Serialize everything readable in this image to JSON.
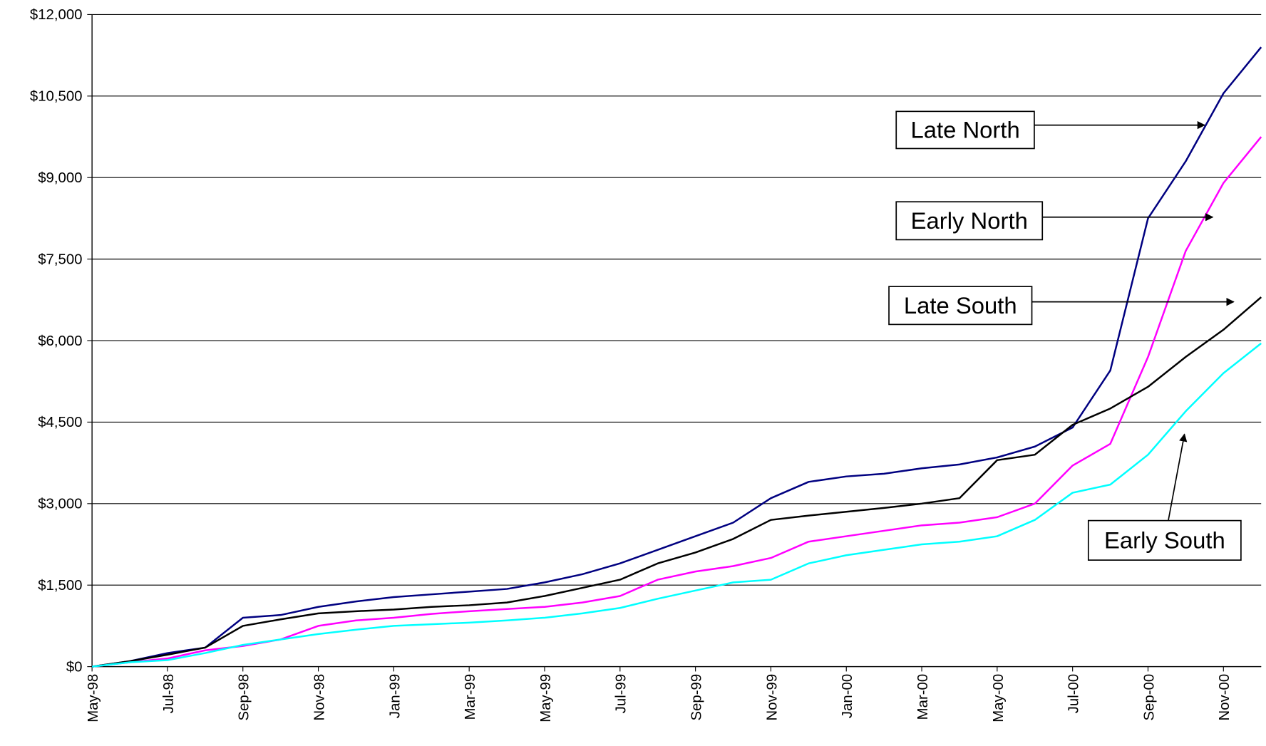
{
  "chart_data": {
    "type": "line",
    "x": [
      "May-98",
      "Jun-98",
      "Jul-98",
      "Aug-98",
      "Sep-98",
      "Oct-98",
      "Nov-98",
      "Dec-98",
      "Jan-99",
      "Feb-99",
      "Mar-99",
      "Apr-99",
      "May-99",
      "Jun-99",
      "Jul-99",
      "Aug-99",
      "Sep-99",
      "Oct-99",
      "Nov-99",
      "Dec-99",
      "Jan-00",
      "Feb-00",
      "Mar-00",
      "Apr-00",
      "May-00",
      "Jun-00",
      "Jul-00",
      "Aug-00",
      "Sep-00",
      "Oct-00",
      "Nov-00",
      "Dec-00"
    ],
    "xticks": [
      "May-98",
      "Jul-98",
      "Sep-98",
      "Nov-98",
      "Jan-99",
      "Mar-99",
      "May-99",
      "Jul-99",
      "Sep-99",
      "Nov-99",
      "Jan-00",
      "Mar-00",
      "May-00",
      "Jul-00",
      "Sep-00",
      "Nov-00"
    ],
    "series": [
      {
        "name": "Late North",
        "color": "#000080",
        "values": [
          0,
          100,
          250,
          350,
          900,
          950,
          1100,
          1200,
          1280,
          1330,
          1380,
          1430,
          1550,
          1700,
          1900,
          2150,
          2400,
          2650,
          3100,
          3400,
          3500,
          3550,
          3650,
          3720,
          3850,
          4050,
          4400,
          5450,
          8250,
          9300,
          10550,
          11400
        ]
      },
      {
        "name": "Early North",
        "color": "#ff00ff",
        "values": [
          0,
          80,
          150,
          300,
          380,
          500,
          750,
          850,
          900,
          970,
          1020,
          1060,
          1100,
          1180,
          1300,
          1600,
          1750,
          1850,
          2000,
          2300,
          2400,
          2500,
          2600,
          2650,
          2750,
          3000,
          3700,
          4100,
          5700,
          7650,
          8900,
          9750
        ]
      },
      {
        "name": "Late South",
        "color": "#000000",
        "values": [
          0,
          100,
          220,
          350,
          750,
          870,
          980,
          1020,
          1050,
          1100,
          1130,
          1180,
          1300,
          1450,
          1600,
          1900,
          2100,
          2350,
          2700,
          2780,
          2850,
          2920,
          3000,
          3100,
          3800,
          3900,
          4450,
          4750,
          5150,
          5700,
          6200,
          6800
        ]
      },
      {
        "name": "Early South",
        "color": "#00ffff",
        "values": [
          0,
          80,
          120,
          250,
          400,
          500,
          600,
          680,
          750,
          780,
          810,
          850,
          900,
          980,
          1080,
          1250,
          1400,
          1550,
          1600,
          1900,
          2050,
          2150,
          2250,
          2300,
          2400,
          2700,
          3200,
          3350,
          3900,
          4700,
          5400,
          5950
        ]
      }
    ],
    "ylim": [
      0,
      12000
    ],
    "yticks": [
      {
        "value": 0,
        "label": "$0"
      },
      {
        "value": 1500,
        "label": "$1,500"
      },
      {
        "value": 3000,
        "label": "$3,000"
      },
      {
        "value": 4500,
        "label": "$4,500"
      },
      {
        "value": 6000,
        "label": "$6,000"
      },
      {
        "value": 7500,
        "label": "$7,500"
      },
      {
        "value": 9000,
        "label": "$9,000"
      },
      {
        "value": 10500,
        "label": "$10,500"
      },
      {
        "value": 12000,
        "label": "$12,000"
      }
    ],
    "grid": true
  }
}
